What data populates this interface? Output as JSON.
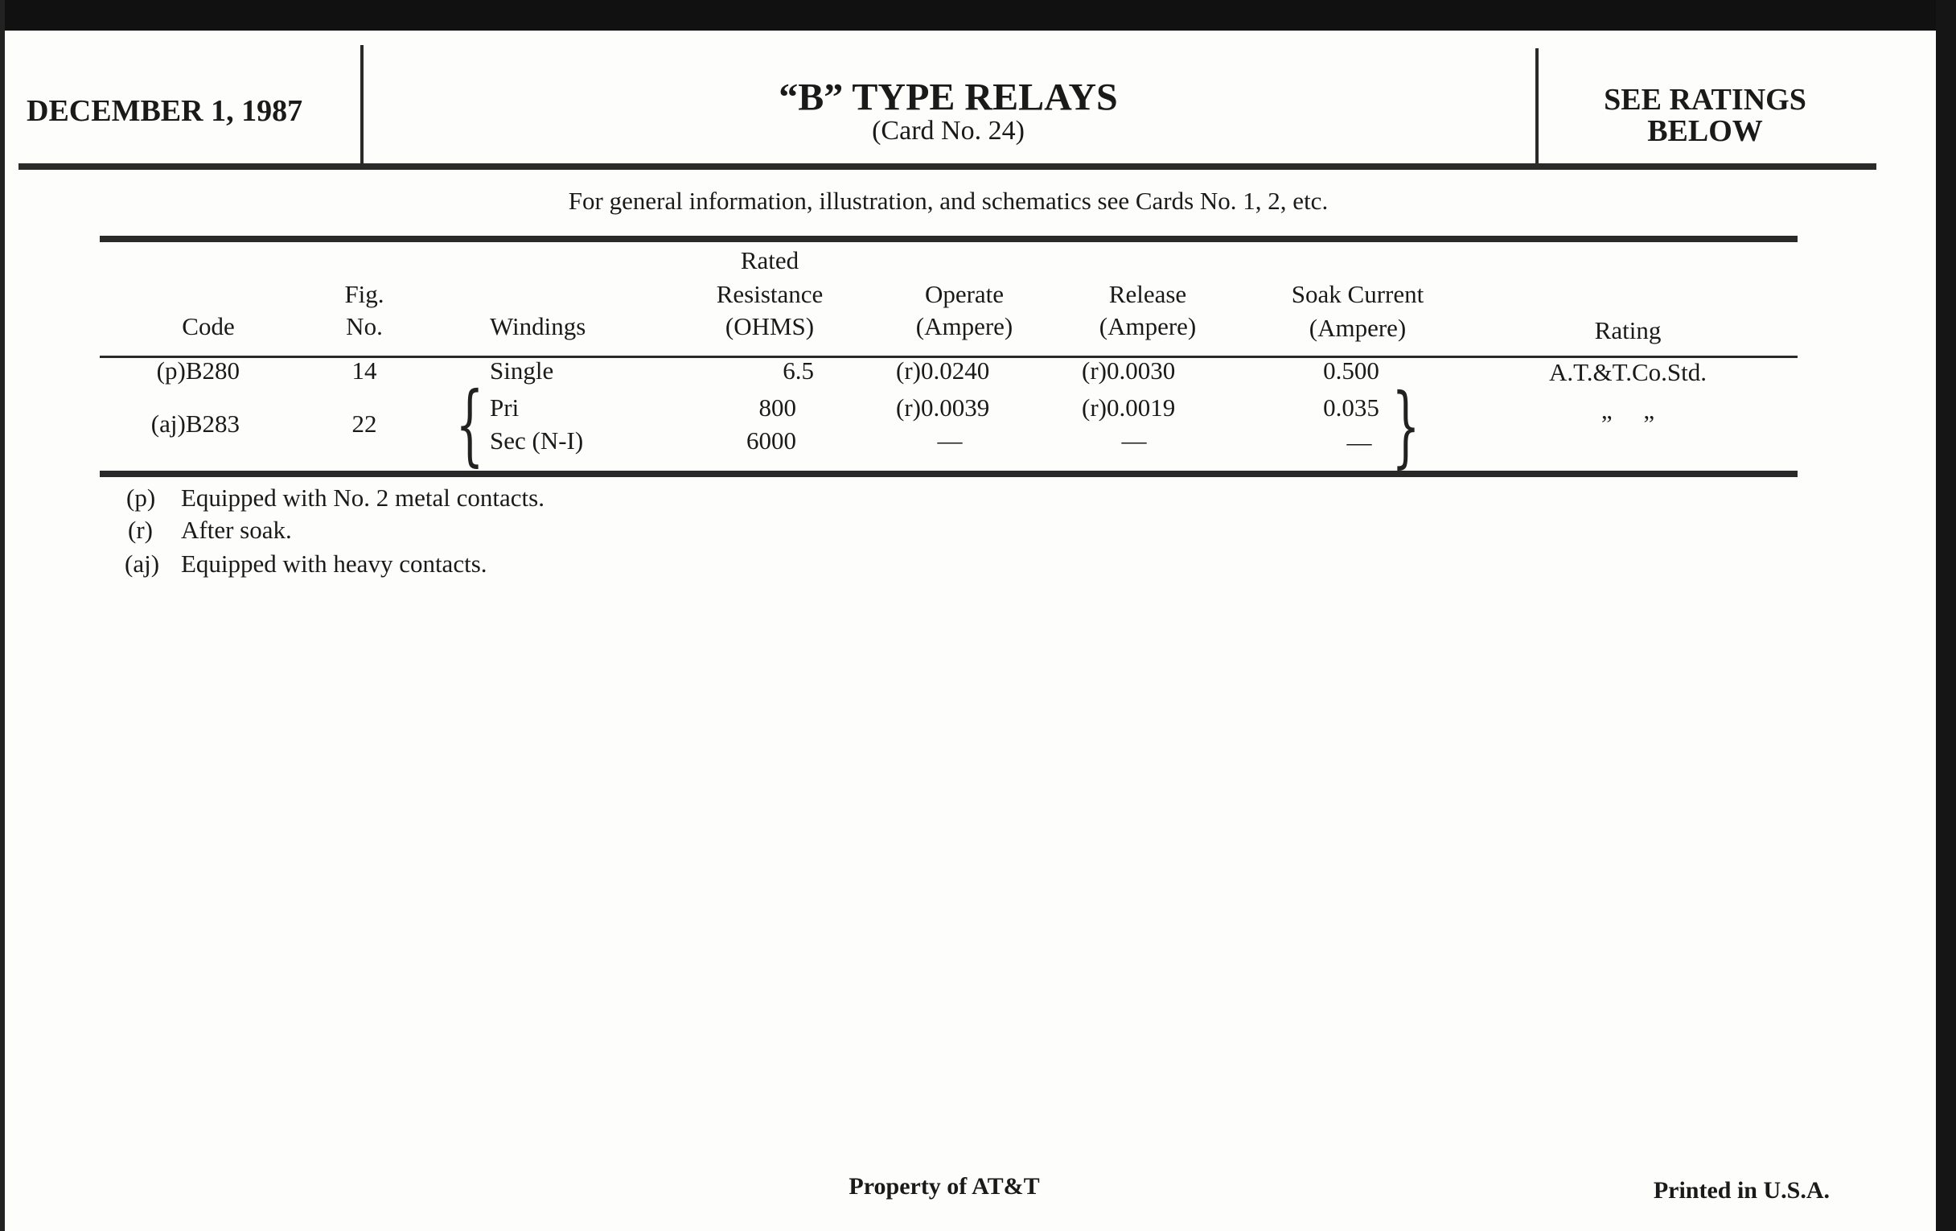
{
  "header": {
    "date": "DECEMBER 1, 1987",
    "title": "“B” TYPE RELAYS",
    "subtitle": "(Card No. 24)",
    "ratings_line1": "SEE RATINGS",
    "ratings_line2": "BELOW"
  },
  "info": "For general information, illustration, and schematics see Cards No. 1, 2, etc.",
  "table": {
    "headers": {
      "code": "Code",
      "fig_1": "Fig.",
      "fig_2": "No.",
      "windings": "Windings",
      "res_1": "Rated",
      "res_2": "Resistance",
      "res_3": "(OHMS)",
      "op_1": "Operate",
      "op_2": "(Ampere)",
      "rel_1": "Release",
      "rel_2": "(Ampere)",
      "soak_1": "Soak Current",
      "soak_2": "(Ampere)",
      "rating": "Rating"
    },
    "rows": [
      {
        "code": "(p)B280",
        "fig": "14",
        "windings": "Single",
        "resistance": "6.5",
        "operate": "(r)0.0240",
        "release": "(r)0.0030",
        "soak": "0.500",
        "rating": "A.T.&T.Co.Std."
      },
      {
        "code": "(aj)B283",
        "fig": "22",
        "windings_1": "Pri",
        "resistance_1": "800",
        "operate_1": "(r)0.0039",
        "release_1": "(r)0.0019",
        "soak_1": "0.035",
        "windings_2": "Sec (N-I)",
        "resistance_2": "6000",
        "operate_2": "—",
        "release_2": "—",
        "soak_2": "—",
        "rating": "”     ”"
      }
    ]
  },
  "footnotes": [
    {
      "mark": "(p)",
      "text": "Equipped with No. 2 metal contacts."
    },
    {
      "mark": "(r)",
      "text": "After soak."
    },
    {
      "mark": "(aj)",
      "text": "Equipped with heavy contacts."
    }
  ],
  "footer": {
    "property": "Property of AT&T",
    "printed": "Printed in U.S.A."
  }
}
